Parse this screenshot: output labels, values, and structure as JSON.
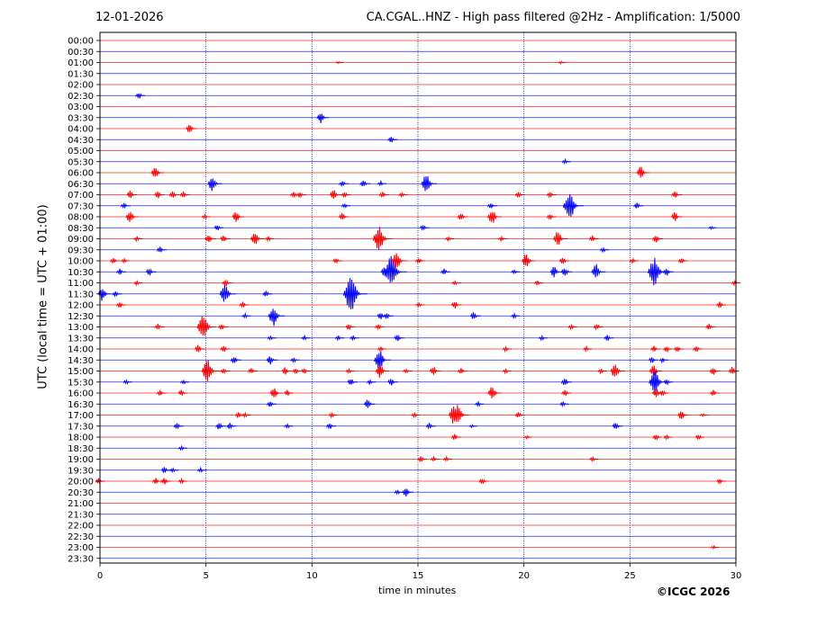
{
  "header": {
    "date": "12-01-2026",
    "title": "CA.CGAL..HNZ - High pass filtered @2Hz - Amplification: 1/5000"
  },
  "footer": {
    "copyright": "©ICGC 2026"
  },
  "chart_data": {
    "type": "line",
    "title": "CA.CGAL..HNZ - High pass filtered @2Hz - Amplification: 1/5000",
    "xlabel": "time in minutes",
    "ylabel": "UTC (local time = UTC + 01:00)",
    "xlim": [
      0,
      30
    ],
    "x_ticks": [
      0,
      5,
      10,
      15,
      20,
      25,
      30
    ],
    "vertical_grid": [
      5,
      10,
      15,
      20,
      25
    ],
    "grid": true,
    "colors": {
      "odd_trace": "#ff0000",
      "even_trace": "#0000ff",
      "grid": "#000080",
      "axis": "#000000"
    },
    "rows": [
      "00:00",
      "00:30",
      "01:00",
      "01:30",
      "02:00",
      "02:30",
      "03:00",
      "03:30",
      "04:00",
      "04:30",
      "05:00",
      "05:30",
      "06:00",
      "06:30",
      "07:00",
      "07:30",
      "08:00",
      "08:30",
      "09:00",
      "09:30",
      "10:00",
      "10:30",
      "11:00",
      "11:30",
      "12:00",
      "12:30",
      "13:00",
      "13:30",
      "14:00",
      "14:30",
      "15:00",
      "15:30",
      "16:00",
      "16:30",
      "17:00",
      "17:30",
      "18:00",
      "18:30",
      "19:00",
      "19:30",
      "20:00",
      "20:30",
      "21:00",
      "21:30",
      "22:00",
      "22:30",
      "23:00",
      "23:30"
    ],
    "events": [
      [
        2,
        11.3,
        0.15
      ],
      [
        2,
        21.8,
        0.15
      ],
      [
        5,
        1.9,
        0.4
      ],
      [
        7,
        10.5,
        0.7
      ],
      [
        8,
        4.3,
        0.6
      ],
      [
        9,
        13.8,
        0.4
      ],
      [
        11,
        22.0,
        0.3
      ],
      [
        12,
        2.7,
        0.8
      ],
      [
        12,
        25.6,
        0.8
      ],
      [
        13,
        5.4,
        1.0
      ],
      [
        13,
        11.5,
        0.4
      ],
      [
        13,
        12.5,
        0.5
      ],
      [
        13,
        13.3,
        0.3
      ],
      [
        13,
        15.5,
        1.2
      ],
      [
        14,
        1.5,
        0.5
      ],
      [
        14,
        2.8,
        0.5
      ],
      [
        14,
        3.5,
        0.5
      ],
      [
        14,
        4.0,
        0.4
      ],
      [
        14,
        9.2,
        0.4
      ],
      [
        14,
        9.5,
        0.4
      ],
      [
        14,
        11.1,
        0.7
      ],
      [
        14,
        11.6,
        0.4
      ],
      [
        14,
        13.4,
        0.4
      ],
      [
        14,
        14.3,
        0.3
      ],
      [
        14,
        19.8,
        0.4
      ],
      [
        14,
        21.3,
        0.4
      ],
      [
        14,
        27.2,
        0.5
      ],
      [
        15,
        1.2,
        0.4
      ],
      [
        15,
        11.6,
        0.3
      ],
      [
        15,
        18.5,
        0.4
      ],
      [
        15,
        22.3,
        1.8
      ],
      [
        15,
        25.4,
        0.4
      ],
      [
        16,
        1.5,
        0.8
      ],
      [
        16,
        5.0,
        0.3
      ],
      [
        16,
        6.5,
        0.7
      ],
      [
        16,
        11.5,
        0.5
      ],
      [
        16,
        17.1,
        0.5
      ],
      [
        16,
        18.6,
        1.0
      ],
      [
        16,
        21.3,
        0.4
      ],
      [
        16,
        27.2,
        0.6
      ],
      [
        17,
        5.6,
        0.4
      ],
      [
        17,
        15.3,
        0.4
      ],
      [
        17,
        28.9,
        0.2
      ],
      [
        18,
        1.8,
        0.3
      ],
      [
        18,
        5.2,
        0.6
      ],
      [
        18,
        5.9,
        0.5
      ],
      [
        18,
        7.4,
        0.9
      ],
      [
        18,
        8.0,
        0.3
      ],
      [
        18,
        13.3,
        1.6
      ],
      [
        18,
        16.5,
        0.3
      ],
      [
        18,
        19.0,
        0.3
      ],
      [
        18,
        21.7,
        1.0
      ],
      [
        18,
        23.3,
        0.4
      ],
      [
        18,
        26.3,
        0.5
      ],
      [
        19,
        2.9,
        0.4
      ],
      [
        19,
        23.8,
        0.3
      ],
      [
        20,
        0.7,
        0.4
      ],
      [
        20,
        1.2,
        0.3
      ],
      [
        20,
        11.2,
        0.4
      ],
      [
        20,
        14.1,
        1.2
      ],
      [
        20,
        15.1,
        0.4
      ],
      [
        20,
        20.2,
        0.9
      ],
      [
        20,
        21.9,
        0.5
      ],
      [
        20,
        25.2,
        0.3
      ],
      [
        20,
        27.5,
        0.4
      ],
      [
        21,
        1.0,
        0.4
      ],
      [
        21,
        2.4,
        0.5
      ],
      [
        21,
        13.5,
        0.6
      ],
      [
        21,
        13.9,
        2.0
      ],
      [
        21,
        16.3,
        0.4
      ],
      [
        21,
        19.6,
        0.3
      ],
      [
        21,
        21.5,
        0.7
      ],
      [
        21,
        22.0,
        0.6
      ],
      [
        21,
        23.5,
        1.0
      ],
      [
        21,
        26.3,
        1.8
      ],
      [
        21,
        26.8,
        0.5
      ],
      [
        22,
        1.8,
        0.3
      ],
      [
        22,
        6.0,
        0.5
      ],
      [
        22,
        16.8,
        0.3
      ],
      [
        22,
        20.7,
        0.3
      ],
      [
        22,
        30.0,
        0.3
      ],
      [
        23,
        0.2,
        0.9
      ],
      [
        23,
        0.8,
        0.4
      ],
      [
        23,
        6.0,
        1.2
      ],
      [
        23,
        7.9,
        0.4
      ],
      [
        23,
        12.0,
        2.2
      ],
      [
        24,
        1.0,
        0.4
      ],
      [
        24,
        6.8,
        0.4
      ],
      [
        24,
        15.1,
        0.3
      ],
      [
        24,
        16.8,
        0.5
      ],
      [
        24,
        29.3,
        0.4
      ],
      [
        25,
        6.9,
        0.3
      ],
      [
        25,
        8.3,
        1.3
      ],
      [
        25,
        13.3,
        0.5
      ],
      [
        25,
        13.6,
        0.4
      ],
      [
        25,
        17.7,
        0.5
      ],
      [
        25,
        19.6,
        0.3
      ],
      [
        26,
        2.8,
        0.4
      ],
      [
        26,
        5.0,
        1.6
      ],
      [
        26,
        5.8,
        0.4
      ],
      [
        26,
        11.8,
        0.4
      ],
      [
        26,
        13.2,
        0.4
      ],
      [
        26,
        22.3,
        0.3
      ],
      [
        26,
        23.5,
        0.4
      ],
      [
        26,
        28.8,
        0.4
      ],
      [
        27,
        8.1,
        0.3
      ],
      [
        27,
        9.7,
        0.3
      ],
      [
        27,
        11.3,
        0.3
      ],
      [
        27,
        12.0,
        0.3
      ],
      [
        27,
        14.1,
        0.5
      ],
      [
        27,
        20.9,
        0.3
      ],
      [
        27,
        24.0,
        0.4
      ],
      [
        28,
        4.7,
        0.5
      ],
      [
        28,
        5.9,
        0.4
      ],
      [
        28,
        13.3,
        0.3
      ],
      [
        28,
        19.2,
        0.3
      ],
      [
        28,
        23.0,
        0.3
      ],
      [
        28,
        26.2,
        0.4
      ],
      [
        28,
        26.8,
        0.4
      ],
      [
        28,
        27.3,
        0.4
      ],
      [
        28,
        28.2,
        0.4
      ],
      [
        29,
        6.4,
        0.5
      ],
      [
        29,
        8.1,
        0.6
      ],
      [
        29,
        9.2,
        0.3
      ],
      [
        29,
        13.3,
        1.3
      ],
      [
        29,
        26.1,
        0.4
      ],
      [
        29,
        26.6,
        0.3
      ],
      [
        30,
        5.2,
        1.5
      ],
      [
        30,
        5.9,
        0.4
      ],
      [
        30,
        7.2,
        0.4
      ],
      [
        30,
        8.8,
        0.5
      ],
      [
        30,
        9.3,
        0.4
      ],
      [
        30,
        9.7,
        0.4
      ],
      [
        30,
        11.8,
        0.3
      ],
      [
        30,
        13.3,
        0.9
      ],
      [
        30,
        14.5,
        0.3
      ],
      [
        30,
        15.8,
        0.6
      ],
      [
        30,
        17.1,
        0.4
      ],
      [
        30,
        19.2,
        0.3
      ],
      [
        30,
        23.7,
        0.3
      ],
      [
        30,
        24.4,
        1.0
      ],
      [
        30,
        26.2,
        0.8
      ],
      [
        30,
        29.0,
        0.5
      ],
      [
        30,
        29.9,
        0.5
      ],
      [
        31,
        1.3,
        0.3
      ],
      [
        31,
        4.0,
        0.3
      ],
      [
        31,
        11.9,
        0.5
      ],
      [
        31,
        12.8,
        0.3
      ],
      [
        31,
        13.8,
        0.5
      ],
      [
        31,
        22.0,
        0.5
      ],
      [
        31,
        26.3,
        1.5
      ],
      [
        31,
        26.8,
        0.4
      ],
      [
        32,
        2.9,
        0.4
      ],
      [
        32,
        3.9,
        0.4
      ],
      [
        32,
        8.3,
        0.8
      ],
      [
        32,
        8.9,
        0.4
      ],
      [
        32,
        18.6,
        0.9
      ],
      [
        32,
        22.0,
        0.4
      ],
      [
        32,
        26.3,
        0.6
      ],
      [
        32,
        26.6,
        0.4
      ],
      [
        32,
        29.0,
        0.4
      ],
      [
        33,
        8.1,
        0.4
      ],
      [
        33,
        12.7,
        0.6
      ],
      [
        33,
        17.9,
        0.3
      ],
      [
        33,
        21.9,
        0.3
      ],
      [
        34,
        6.6,
        0.4
      ],
      [
        34,
        6.9,
        0.3
      ],
      [
        34,
        11.0,
        0.3
      ],
      [
        34,
        14.9,
        0.3
      ],
      [
        34,
        16.8,
        1.2
      ],
      [
        34,
        17.0,
        1.3
      ],
      [
        34,
        19.8,
        0.4
      ],
      [
        34,
        27.5,
        0.6
      ],
      [
        34,
        28.5,
        0.2
      ],
      [
        35,
        3.7,
        0.4
      ],
      [
        35,
        5.7,
        0.5
      ],
      [
        35,
        6.2,
        0.4
      ],
      [
        35,
        8.9,
        0.3
      ],
      [
        35,
        10.9,
        0.4
      ],
      [
        35,
        15.6,
        0.4
      ],
      [
        35,
        17.6,
        0.2
      ],
      [
        35,
        24.4,
        0.5
      ],
      [
        36,
        16.8,
        0.4
      ],
      [
        36,
        20.2,
        0.2
      ],
      [
        36,
        26.3,
        0.4
      ],
      [
        36,
        26.8,
        0.3
      ],
      [
        36,
        28.3,
        0.4
      ],
      [
        37,
        3.9,
        0.3
      ],
      [
        38,
        15.2,
        0.4
      ],
      [
        38,
        15.8,
        0.3
      ],
      [
        38,
        16.4,
        0.3
      ],
      [
        38,
        23.3,
        0.3
      ],
      [
        39,
        3.1,
        0.4
      ],
      [
        39,
        3.5,
        0.3
      ],
      [
        39,
        4.8,
        0.3
      ],
      [
        40,
        0.0,
        0.4
      ],
      [
        40,
        2.7,
        0.4
      ],
      [
        40,
        3.1,
        0.5
      ],
      [
        40,
        3.9,
        0.3
      ],
      [
        40,
        18.1,
        0.4
      ],
      [
        40,
        29.3,
        0.4
      ],
      [
        41,
        14.1,
        0.3
      ],
      [
        41,
        14.5,
        0.6
      ],
      [
        46,
        29.0,
        0.2
      ]
    ]
  }
}
